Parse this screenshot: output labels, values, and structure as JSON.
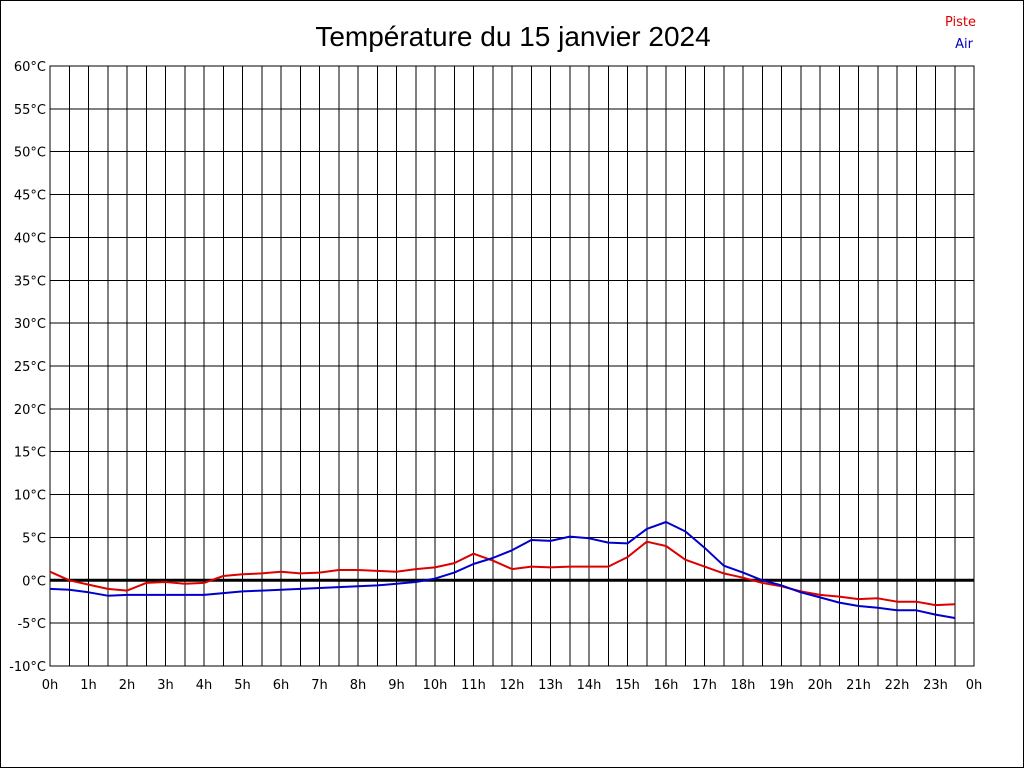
{
  "chart_data": {
    "type": "line",
    "title": "Température du 15 janvier 2024",
    "xlabel": "",
    "ylabel": "",
    "x_ticks": [
      "0h",
      "1h",
      "2h",
      "3h",
      "4h",
      "5h",
      "6h",
      "7h",
      "8h",
      "9h",
      "10h",
      "11h",
      "12h",
      "13h",
      "14h",
      "15h",
      "16h",
      "17h",
      "18h",
      "19h",
      "20h",
      "21h",
      "22h",
      "23h",
      "0h"
    ],
    "y_ticks": [
      "60°C",
      "55°C",
      "50°C",
      "45°C",
      "40°C",
      "35°C",
      "30°C",
      "25°C",
      "20°C",
      "15°C",
      "10°C",
      "5°C",
      "0°C",
      "-5°C",
      "-10°C"
    ],
    "xlim": [
      0,
      24
    ],
    "ylim": [
      -10,
      60
    ],
    "grid": true,
    "legend_position": "top-right",
    "series": [
      {
        "name": "Piste",
        "color": "#dd0000",
        "x": [
          0,
          0.5,
          1,
          1.5,
          2,
          2.5,
          3,
          3.5,
          4,
          4.5,
          5,
          5.5,
          6,
          6.5,
          7,
          7.5,
          8,
          8.5,
          9,
          9.5,
          10,
          10.5,
          11,
          11.5,
          12,
          12.5,
          13,
          13.5,
          14,
          14.5,
          15,
          15.5,
          16,
          16.5,
          17,
          17.5,
          18,
          18.5,
          19,
          19.5,
          20,
          20.5,
          21,
          21.5,
          22,
          22.5,
          23,
          23.5
        ],
        "values": [
          1.0,
          0.0,
          -0.5,
          -1.0,
          -1.2,
          -0.3,
          -0.2,
          -0.4,
          -0.3,
          0.5,
          0.7,
          0.8,
          1.0,
          0.8,
          0.9,
          1.2,
          1.2,
          1.1,
          1.0,
          1.3,
          1.5,
          2.0,
          3.1,
          2.3,
          1.3,
          1.6,
          1.5,
          1.6,
          1.6,
          1.6,
          2.7,
          4.5,
          4.0,
          2.4,
          1.6,
          0.8,
          0.3,
          -0.3,
          -0.7,
          -1.3,
          -1.7,
          -1.9,
          -2.2,
          -2.1,
          -2.5,
          -2.5,
          -2.9,
          -2.8
        ]
      },
      {
        "name": "Air",
        "color": "#0000cc",
        "x": [
          0,
          0.5,
          1,
          1.5,
          2,
          2.5,
          3,
          3.5,
          4,
          4.5,
          5,
          5.5,
          6,
          6.5,
          7,
          7.5,
          8,
          8.5,
          9,
          9.5,
          10,
          10.5,
          11,
          11.5,
          12,
          12.5,
          13,
          13.5,
          14,
          14.5,
          15,
          15.5,
          16,
          16.5,
          17,
          17.5,
          18,
          18.5,
          19,
          19.5,
          20,
          20.5,
          21,
          21.5,
          22,
          22.5,
          23,
          23.5
        ],
        "values": [
          -1.0,
          -1.1,
          -1.4,
          -1.8,
          -1.7,
          -1.7,
          -1.7,
          -1.7,
          -1.7,
          -1.5,
          -1.3,
          -1.2,
          -1.1,
          -1.0,
          -0.9,
          -0.8,
          -0.7,
          -0.6,
          -0.4,
          -0.2,
          0.2,
          0.9,
          1.9,
          2.6,
          3.5,
          4.7,
          4.6,
          5.1,
          4.9,
          4.4,
          4.3,
          6.0,
          6.8,
          5.7,
          3.8,
          1.7,
          0.9,
          0.0,
          -0.6,
          -1.4,
          -2.0,
          -2.6,
          -3.0,
          -3.2,
          -3.5,
          -3.5,
          -4.0,
          -4.4
        ]
      }
    ]
  }
}
